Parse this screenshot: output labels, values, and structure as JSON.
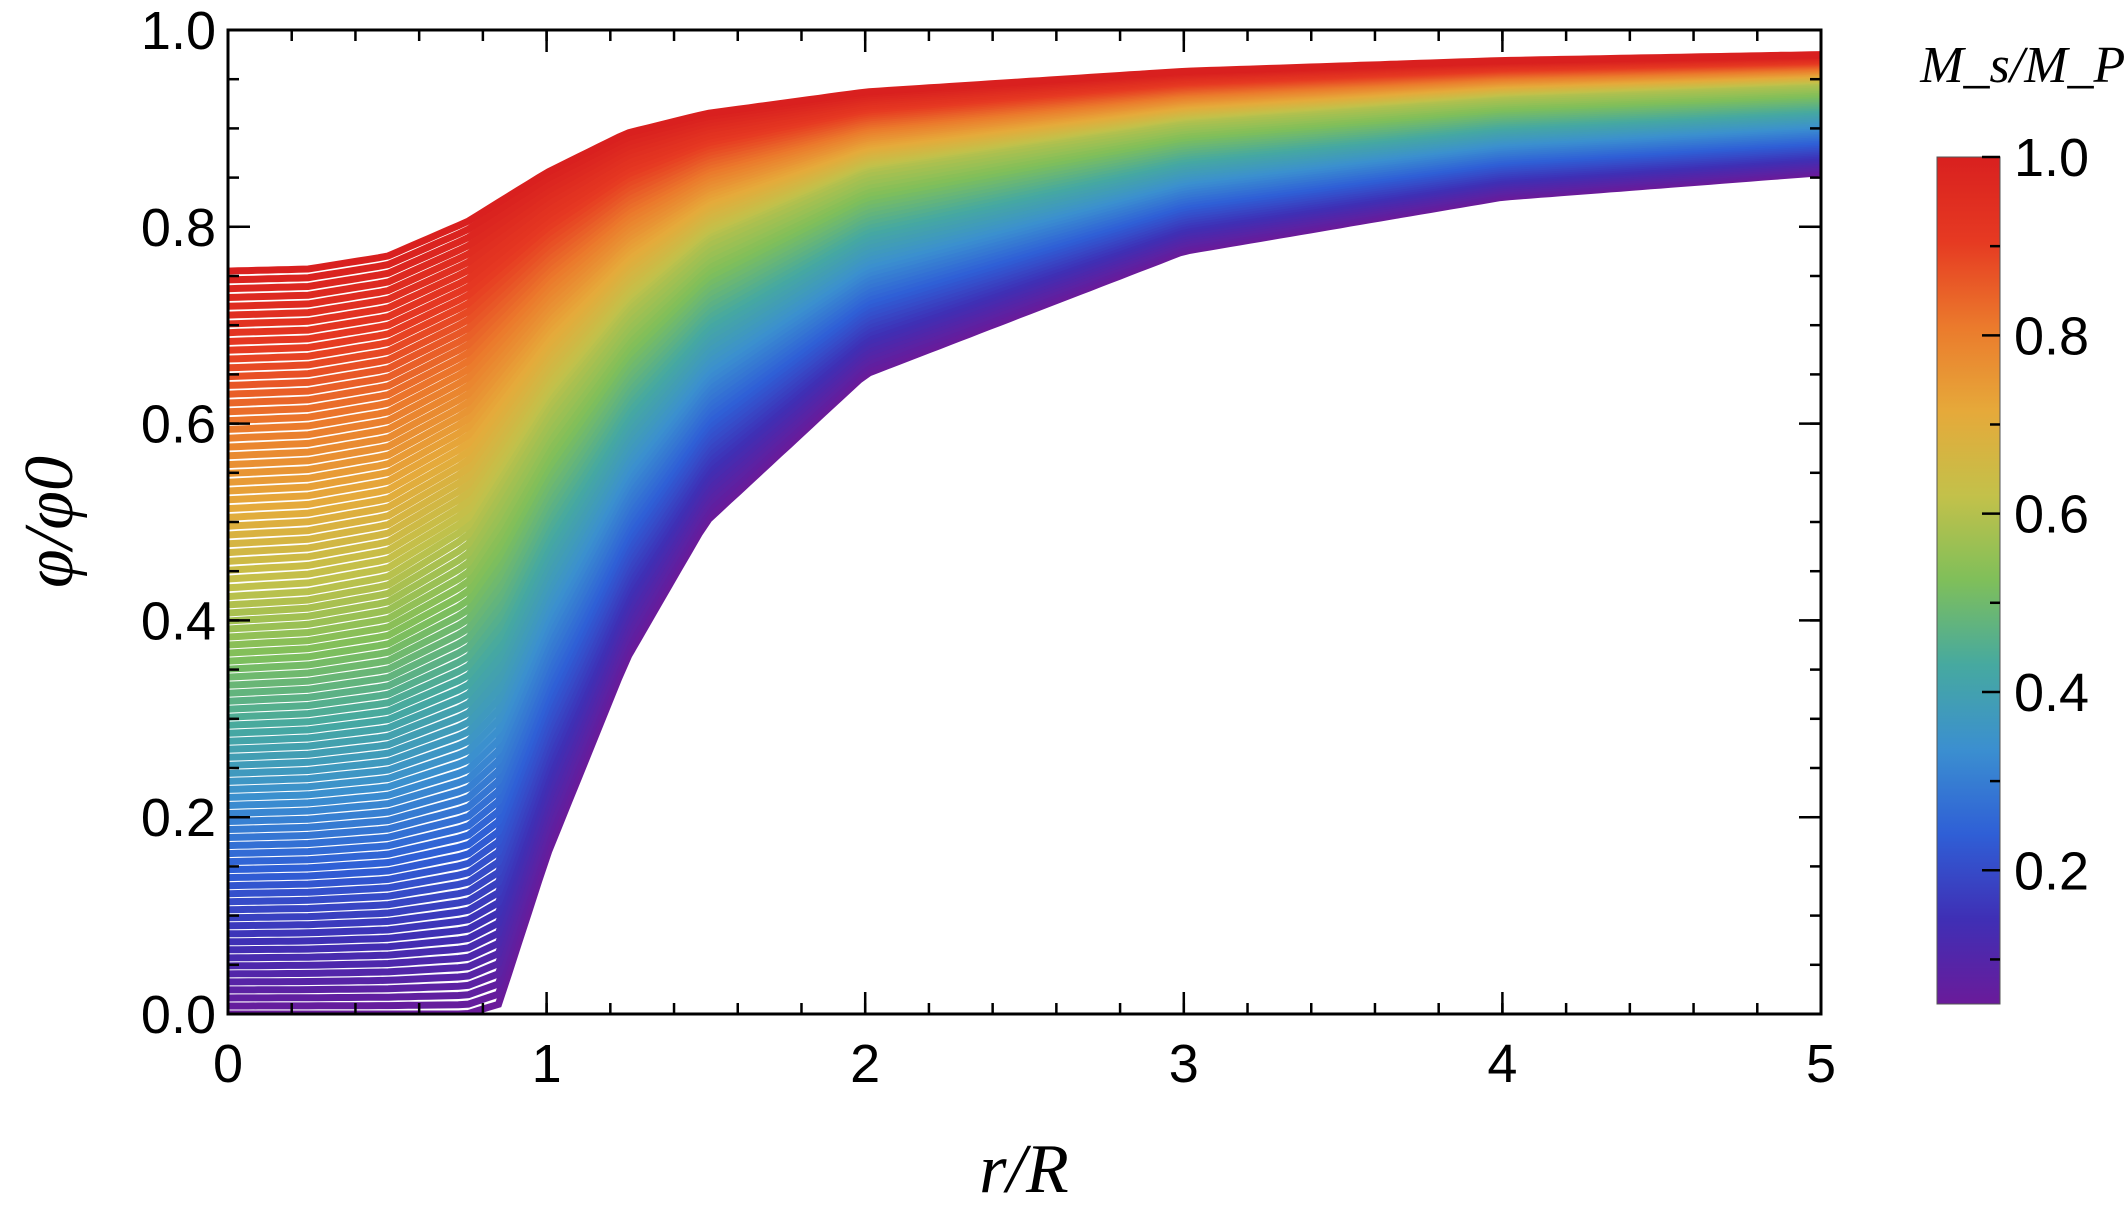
{
  "chart_data": {
    "type": "line",
    "title": "",
    "xlabel": "r/R",
    "ylabel": "φ/φ0",
    "xlim": [
      0,
      5
    ],
    "ylim": [
      0,
      1.0
    ],
    "x_ticks": [
      "0",
      "1",
      "2",
      "3",
      "4",
      "5"
    ],
    "y_ticks": [
      "0.0",
      "0.2",
      "0.4",
      "0.6",
      "0.8",
      "1.0"
    ],
    "grid": false,
    "legend": "colorbar-right",
    "series_count": 90,
    "series_parameter": {
      "name": "M_s/M_Pl",
      "min": 0.05,
      "max": 1.0
    },
    "representative_series": [
      {
        "param": 1.0,
        "x": [
          0,
          0.25,
          0.5,
          0.75,
          1.0,
          1.25,
          1.5,
          2.0,
          3.0,
          4.0,
          5.0
        ],
        "y": [
          0.755,
          0.757,
          0.77,
          0.805,
          0.855,
          0.895,
          0.915,
          0.937,
          0.958,
          0.969,
          0.975
        ]
      },
      {
        "param": 0.6,
        "x": [
          0,
          0.25,
          0.5,
          0.75,
          1.0,
          1.25,
          1.5,
          2.0,
          3.0,
          4.0,
          5.0
        ],
        "y": [
          0.42,
          0.425,
          0.44,
          0.49,
          0.62,
          0.72,
          0.79,
          0.86,
          0.91,
          0.935,
          0.948
        ]
      },
      {
        "param": 0.05,
        "x": [
          0,
          0.25,
          0.5,
          0.75,
          0.85,
          1.0,
          1.25,
          1.5,
          2.0,
          3.0,
          4.0,
          5.0
        ],
        "y": [
          0.0,
          0.0,
          0.0,
          0.0,
          0.01,
          0.16,
          0.36,
          0.5,
          0.65,
          0.775,
          0.83,
          0.855
        ]
      }
    ],
    "colorbar": {
      "label": "M_s/M_Pl",
      "min": 0.05,
      "max": 1.0,
      "ticks": [
        "0.2",
        "0.4",
        "0.6",
        "0.8",
        "1.0"
      ],
      "colormap": [
        "#6a1b9a",
        "#3f2fb5",
        "#2f5fd6",
        "#3b8fd0",
        "#46a9a0",
        "#7fbf5a",
        "#c3c14a",
        "#e6a93a",
        "#eb7a2c",
        "#e63a22",
        "#d9201f"
      ]
    }
  }
}
